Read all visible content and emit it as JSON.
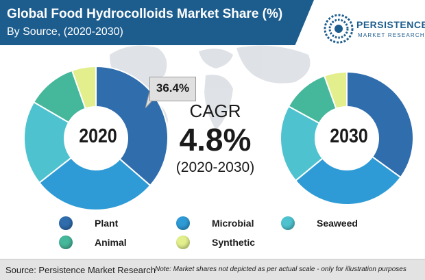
{
  "header": {
    "title": "Global Food Hydrocolloids Market Share (%)",
    "subtitle": "By Source, (2020-2030)"
  },
  "logo": {
    "brand": "PERSISTENCE",
    "tagline": "MARKET RESEARCH",
    "icon": "persistence-logo-icon"
  },
  "callout": {
    "text": "36.4%"
  },
  "cagr": {
    "label": "CAGR",
    "value": "4.8%",
    "period": "(2020-2030)"
  },
  "colors": {
    "title_band": "#1d5d8e",
    "Plant": "#2f6dad",
    "Microbial": "#2e9bd6",
    "Seaweed": "#4ec3cf",
    "Animal": "#45b79a",
    "Synthetic": "#e2ef8c"
  },
  "footer": {
    "source": "Source: Persistence Market Research",
    "note": "Note: Market shares not depicted as per actual scale - only for illustration purposes"
  },
  "chart_data": [
    {
      "type": "pie",
      "variant": "donut",
      "center_label": "2020",
      "categories": [
        "Plant",
        "Microbial",
        "Seaweed",
        "Animal",
        "Synthetic"
      ],
      "values": [
        36.4,
        28.0,
        19.0,
        11.2,
        5.4
      ],
      "data_labels": {
        "Plant": "36.4%"
      },
      "legend": [
        "Plant",
        "Microbial",
        "Seaweed",
        "Animal",
        "Synthetic"
      ],
      "legend_placement": "bottom"
    },
    {
      "type": "pie",
      "variant": "donut",
      "center_label": "2030",
      "categories": [
        "Plant",
        "Microbial",
        "Seaweed",
        "Animal",
        "Synthetic"
      ],
      "values": [
        35.0,
        29.0,
        19.0,
        11.5,
        5.5
      ],
      "legend": [
        "Plant",
        "Microbial",
        "Seaweed",
        "Animal",
        "Synthetic"
      ],
      "legend_placement": "bottom"
    }
  ]
}
